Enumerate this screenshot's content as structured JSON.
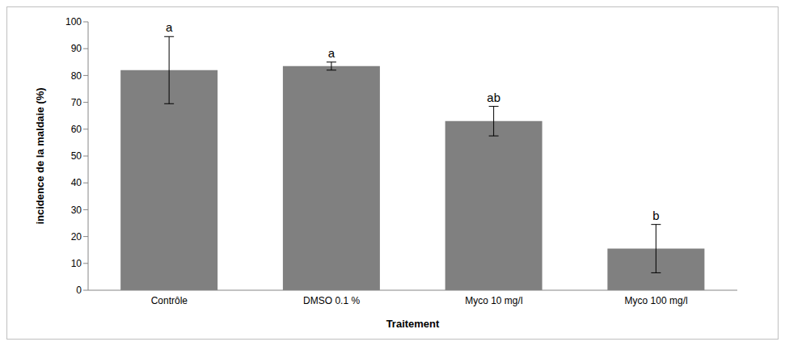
{
  "chart_data": {
    "type": "bar",
    "categories": [
      "Contrôle",
      "DMSO 0.1 %",
      "Myco 10 mg/l",
      "Myco 100 mg/l"
    ],
    "values": [
      82,
      83.5,
      63,
      15.5
    ],
    "errors": [
      12.5,
      1.5,
      5.5,
      9
    ],
    "annotations": [
      "a",
      "a",
      "ab",
      "b"
    ],
    "color": "#808080",
    "x_label": "Traitement",
    "y_label": "incidence de la maldaie (%)",
    "ylim": [
      0,
      100
    ],
    "yticks": [
      0,
      10,
      20,
      30,
      40,
      50,
      60,
      70,
      80,
      90,
      100
    ],
    "grid": false
  }
}
